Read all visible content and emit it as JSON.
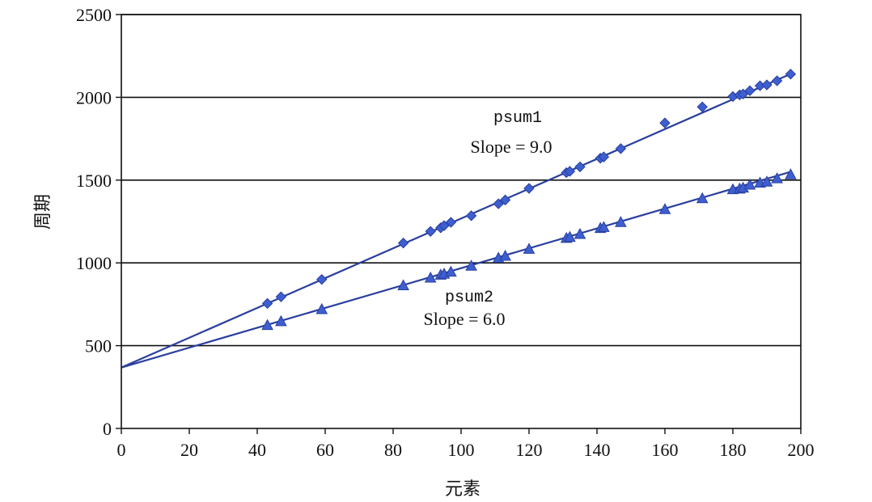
{
  "chart_data": {
    "type": "scatter",
    "xlabel": "元素",
    "ylabel": "周期",
    "xlim": [
      0,
      200
    ],
    "ylim": [
      0,
      2500
    ],
    "x_ticks": [
      "0",
      "20",
      "40",
      "60",
      "80",
      "100",
      "120",
      "140",
      "160",
      "180",
      "200"
    ],
    "y_ticks": [
      "0",
      "500",
      "1000",
      "1500",
      "2000",
      "2500"
    ],
    "grid": "horizontal",
    "colors": {
      "series": "#2a3f9e",
      "marker": "#3d5fd0",
      "axis": "#111111"
    },
    "series": [
      {
        "name": "psum1",
        "slope_label": "Slope = 9.0",
        "marker": "diamond",
        "line": {
          "intercept": 368,
          "slope": 9.0
        },
        "points": [
          [
            43,
            755
          ],
          [
            47,
            795
          ],
          [
            59,
            900
          ],
          [
            83,
            1120
          ],
          [
            91,
            1190
          ],
          [
            94,
            1212
          ],
          [
            95,
            1225
          ],
          [
            97,
            1245
          ],
          [
            103,
            1285
          ],
          [
            111,
            1357
          ],
          [
            113,
            1380
          ],
          [
            120,
            1450
          ],
          [
            131,
            1545
          ],
          [
            132,
            1553
          ],
          [
            135,
            1580
          ],
          [
            141,
            1632
          ],
          [
            142,
            1640
          ],
          [
            147,
            1690
          ],
          [
            160,
            1845
          ],
          [
            171,
            1942
          ],
          [
            180,
            2005
          ],
          [
            182,
            2015
          ],
          [
            183,
            2020
          ],
          [
            185,
            2040
          ],
          [
            188,
            2070
          ],
          [
            190,
            2075
          ],
          [
            193,
            2100
          ],
          [
            197,
            2140
          ]
        ]
      },
      {
        "name": "psum2",
        "slope_label": "Slope = 6.0",
        "marker": "triangle",
        "line": {
          "intercept": 368,
          "slope": 6.0
        },
        "points": [
          [
            43,
            622
          ],
          [
            47,
            645
          ],
          [
            59,
            718
          ],
          [
            83,
            862
          ],
          [
            91,
            908
          ],
          [
            94,
            926
          ],
          [
            95,
            932
          ],
          [
            97,
            944
          ],
          [
            103,
            980
          ],
          [
            111,
            1028
          ],
          [
            113,
            1040
          ],
          [
            120,
            1082
          ],
          [
            131,
            1148
          ],
          [
            132,
            1154
          ],
          [
            135,
            1172
          ],
          [
            141,
            1208
          ],
          [
            142,
            1214
          ],
          [
            147,
            1244
          ],
          [
            160,
            1322
          ],
          [
            171,
            1388
          ],
          [
            180,
            1442
          ],
          [
            182,
            1446
          ],
          [
            183,
            1452
          ],
          [
            185,
            1470
          ],
          [
            188,
            1482
          ],
          [
            190,
            1488
          ],
          [
            193,
            1508
          ],
          [
            197,
            1532
          ]
        ]
      }
    ]
  }
}
